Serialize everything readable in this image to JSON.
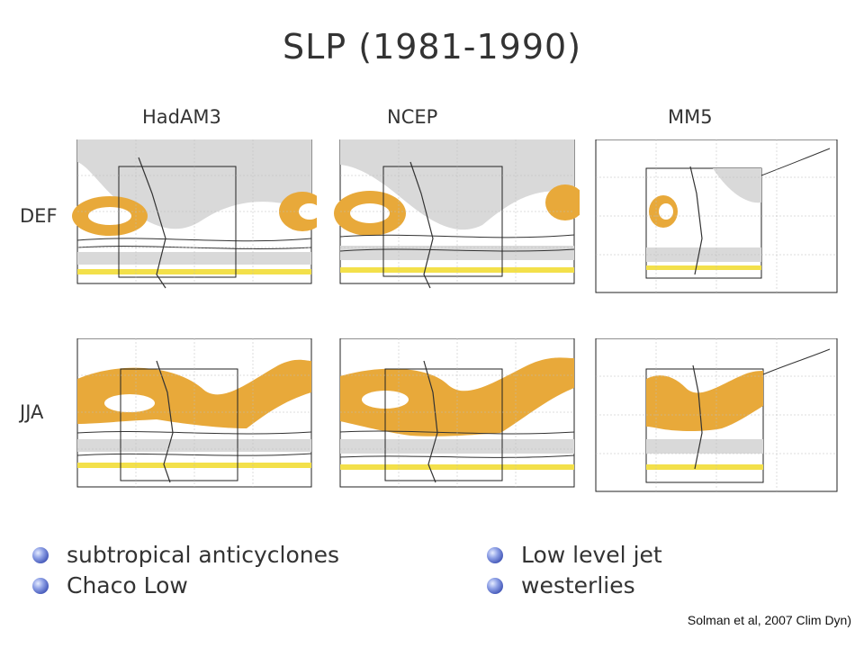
{
  "title": "SLP (1981-1990)",
  "columns": [
    "HadAM3",
    "NCEP",
    "MM5"
  ],
  "rows": [
    "DEF",
    "JJA"
  ],
  "bullets_left": [
    "subtropical anticyclones",
    "Chaco Low"
  ],
  "bullets_right": [
    "Low level jet",
    "westerlies"
  ],
  "citation": "Solman et al, 2007 Clim Dyn)",
  "colors": {
    "anticyclone_fill": "#e8a93a",
    "low_fill": "#d9d9d9",
    "jet_band": "#f3e04a"
  }
}
